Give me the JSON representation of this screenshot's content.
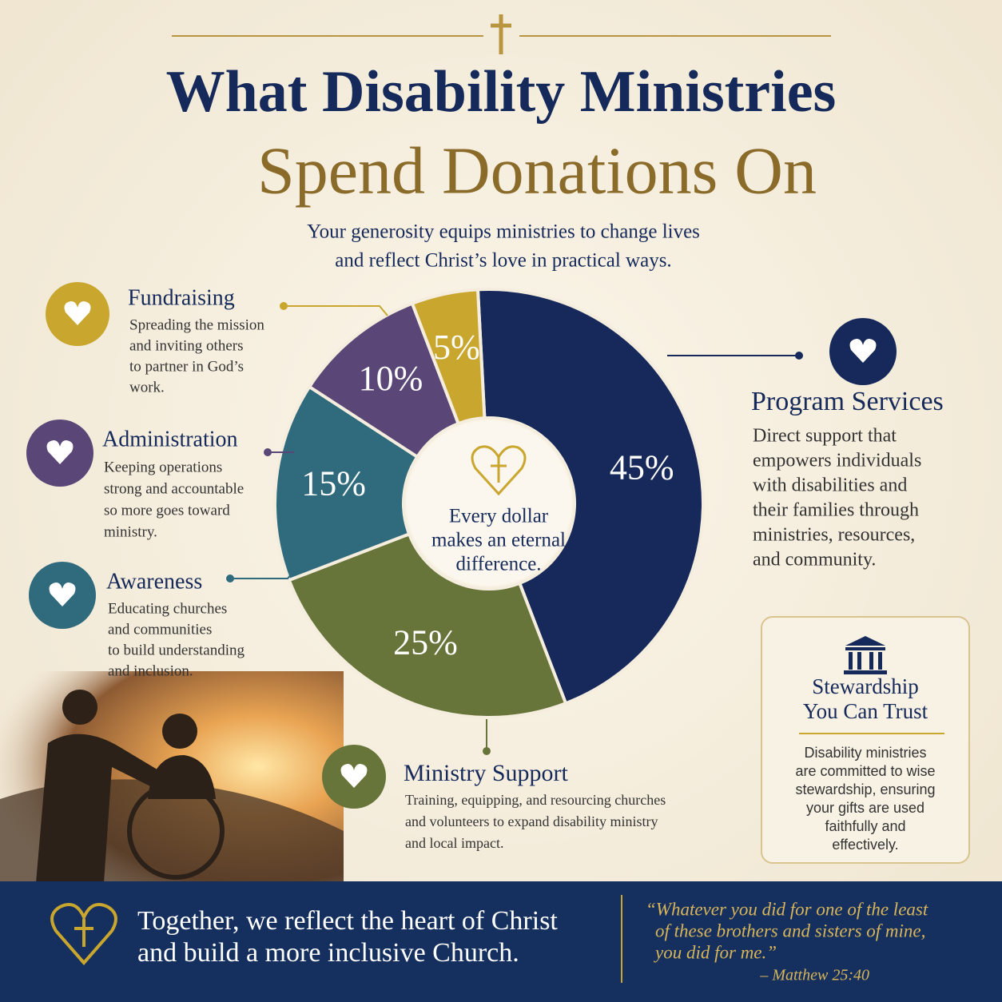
{
  "title_line1": "What Disability Ministries",
  "title_line2": "Spend Donations On",
  "subtitle": [
    "Your generosity equips ministries to change lives",
    "and reflect Christ’s love in practical ways."
  ],
  "chart_data": {
    "type": "pie",
    "donut": true,
    "categories": [
      "Program Services",
      "Ministry Support",
      "Awareness",
      "Administration",
      "Fundraising"
    ],
    "values": [
      45,
      25,
      15,
      10,
      5
    ],
    "value_labels": [
      "45%",
      "25%",
      "15%",
      "10%",
      "5%"
    ],
    "colors": [
      "#16295a",
      "#68753a",
      "#2f6a7d",
      "#5b4777",
      "#c9a62e"
    ],
    "center_text": [
      "Every dollar",
      "makes an eternal",
      "difference."
    ]
  },
  "callouts": [
    [
      "Direct support that",
      "empowers individuals",
      "with disabilities and",
      "their families through",
      "ministries, resources,",
      "and community."
    ],
    [
      "Training, equipping, and resourcing churches",
      "and volunteers to expand disability ministry",
      "and local impact."
    ],
    [
      "Educating churches",
      "and communities",
      "to build understanding",
      "and inclusion."
    ],
    [
      "Keeping operations",
      "strong and accountable",
      "so more goes toward",
      "ministry."
    ],
    [
      "Spreading the mission",
      "and inviting others",
      "to partner in God’s",
      "work."
    ]
  ],
  "stewardship": {
    "title": [
      "Stewardship",
      "You Can Trust"
    ],
    "text": [
      "Disability ministries",
      "are committed to wise",
      "stewardship, ensuring",
      "your gifts are used",
      "faithfully and",
      "effectively."
    ]
  },
  "footer": {
    "message": [
      "Together, we reflect the heart of Christ",
      "and build a more inclusive Church."
    ],
    "quote": [
      "“Whatever you did for one of the least",
      "of these brothers and sisters of mine,",
      "you did for me.”"
    ],
    "citation": "– Matthew 25:40"
  }
}
